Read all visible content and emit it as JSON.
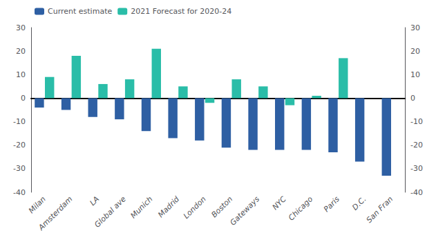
{
  "chart_data": {
    "type": "bar",
    "categories": [
      "Milan",
      "Amsterdam",
      "LA",
      "Global ave",
      "Munich",
      "Madrid",
      "London",
      "Boston",
      "Gateways",
      "NYC",
      "Chicago",
      "Paris",
      "D.C.",
      "San Fran"
    ],
    "series": [
      {
        "name": "Current estimate",
        "color": "#2e5fa3",
        "values": [
          -4,
          -5,
          -8,
          -9,
          -14,
          -17,
          -18,
          -21,
          -22,
          -22,
          -22,
          -23,
          -27,
          -33
        ]
      },
      {
        "name": "2021 Forecast for 2020-24",
        "color": "#2abda8",
        "values": [
          9,
          18,
          6,
          8,
          21,
          5,
          -2,
          8,
          5,
          -3,
          1,
          17,
          0,
          0
        ]
      }
    ],
    "ylim": [
      -40,
      30
    ],
    "yticks": [
      -40,
      -30,
      -20,
      -10,
      0,
      10,
      20,
      30
    ],
    "y2lim": [
      -40,
      30
    ],
    "y2ticks": [
      -40,
      -30,
      -20,
      -10,
      0,
      10,
      20,
      30
    ],
    "grid": false,
    "legend": "upper left"
  }
}
